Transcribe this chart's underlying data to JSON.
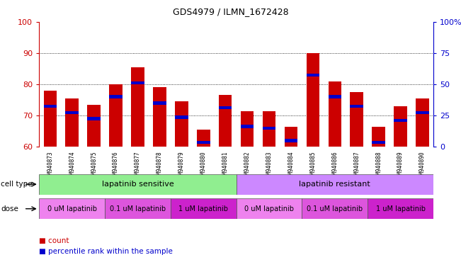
{
  "title": "GDS4979 / ILMN_1672428",
  "samples": [
    "GSM940873",
    "GSM940874",
    "GSM940875",
    "GSM940876",
    "GSM940877",
    "GSM940878",
    "GSM940879",
    "GSM940880",
    "GSM940881",
    "GSM940882",
    "GSM940883",
    "GSM940884",
    "GSM940885",
    "GSM940886",
    "GSM940887",
    "GSM940888",
    "GSM940889",
    "GSM940890"
  ],
  "bar_values": [
    78,
    75.5,
    73.5,
    80,
    85.5,
    79,
    74.5,
    65.5,
    76.5,
    71.5,
    71.5,
    66.5,
    90,
    81,
    77.5,
    66.5,
    73,
    75.5
  ],
  "blue_marker_values": [
    73,
    71,
    69,
    76,
    80.5,
    74,
    69.5,
    61.5,
    72.5,
    66.5,
    66,
    62,
    83,
    76,
    73,
    61.5,
    68.5,
    71
  ],
  "ymin": 60,
  "ymax": 100,
  "yticks_left": [
    60,
    70,
    80,
    90,
    100
  ],
  "right_yticks": [
    0,
    25,
    50,
    75,
    100
  ],
  "bar_color": "#cc0000",
  "blue_color": "#0000cc",
  "left_axis_color": "#cc0000",
  "right_axis_color": "#0000cc",
  "cell_type_sensitive_color": "#90ee90",
  "cell_type_resistant_color": "#cc88ff",
  "dose_colors": [
    "#ee82ee",
    "#dd55dd",
    "#cc22cc"
  ],
  "dose_labels": [
    "0 uM lapatinib",
    "0.1 uM lapatinib",
    "1 uM lapatinib"
  ],
  "background_color": "#ffffff",
  "bar_width": 0.6,
  "grid_color": "#000000"
}
